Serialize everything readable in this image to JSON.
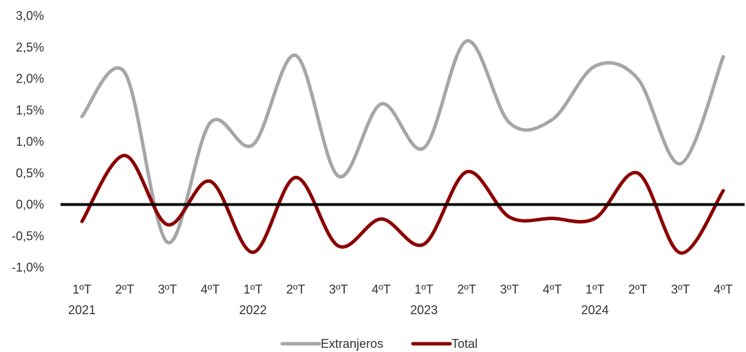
{
  "chart_data": {
    "type": "line",
    "title": "",
    "xlabel": "",
    "ylabel": "",
    "ylim": [
      -1.0,
      3.0
    ],
    "ytick_labels": [
      "3,0%",
      "2,5%",
      "2,0%",
      "1,5%",
      "1,0%",
      "0,5%",
      "0,0%",
      "-0,5%",
      "-1,0%"
    ],
    "ytick_values": [
      3.0,
      2.5,
      2.0,
      1.5,
      1.0,
      0.5,
      0.0,
      -0.5,
      -1.0
    ],
    "categories": [
      "1ºT",
      "2ºT",
      "3ºT",
      "4ºT",
      "1ºT",
      "2ºT",
      "3ºT",
      "4ºT",
      "1ºT",
      "2ºT",
      "3ºT",
      "4ºT",
      "1ºT",
      "2ºT",
      "3ºT",
      "4ºT"
    ],
    "year_labels": [
      {
        "index": 0,
        "label": "2021"
      },
      {
        "index": 4,
        "label": "2022"
      },
      {
        "index": 8,
        "label": "2023"
      },
      {
        "index": 12,
        "label": "2024"
      }
    ],
    "grid": false,
    "zero_line": true,
    "legend_position": "bottom",
    "series": [
      {
        "name": "Extranjeros",
        "color": "#a6a6a6",
        "values": [
          1.4,
          2.1,
          -0.6,
          1.3,
          0.95,
          2.37,
          0.45,
          1.6,
          0.9,
          2.6,
          1.3,
          1.35,
          2.2,
          2.0,
          0.65,
          2.35
        ]
      },
      {
        "name": "Total",
        "color": "#8b0000",
        "values": [
          -0.27,
          0.78,
          -0.32,
          0.37,
          -0.76,
          0.43,
          -0.66,
          -0.23,
          -0.63,
          0.52,
          -0.2,
          -0.22,
          -0.22,
          0.5,
          -0.77,
          0.22
        ]
      }
    ]
  }
}
